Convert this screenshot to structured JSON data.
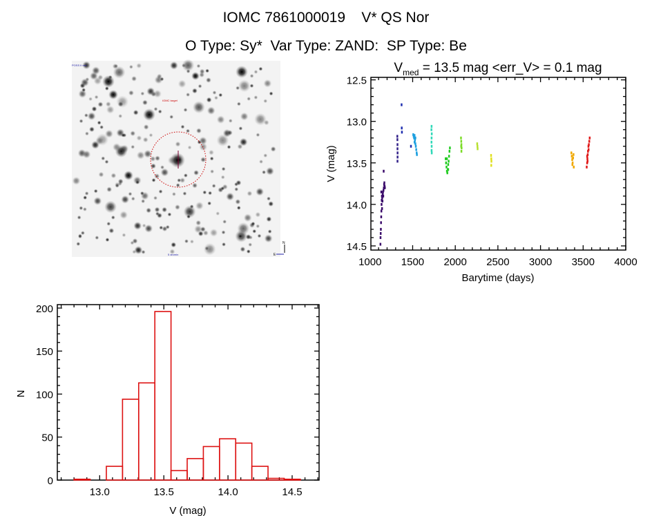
{
  "header": {
    "title": "IOMC 7861000019    V* QS Nor",
    "subtitle": "O Type: Sy*  Var Type: ZAND:  SP Type: Be"
  },
  "finder_chart": {
    "labels": [
      "POSS II red",
      "IOMC target",
      "5 arcmin",
      "N",
      "E"
    ],
    "circle_color": "#cc0000"
  },
  "chart_data": [
    {
      "type": "scatter",
      "title_main": "V",
      "title_sub": "med",
      "title_rest": " = 13.5 mag <err_V> = 0.1 mag",
      "xlabel": "Barytime (days)",
      "ylabel": "V (mag)",
      "xlim": [
        1010,
        4000
      ],
      "ylim": [
        12.47,
        14.55
      ],
      "y_inverted": true,
      "xticks": [
        "1000",
        "1500",
        "2000",
        "2500",
        "3000",
        "3500",
        "4000"
      ],
      "yticks": [
        "12.5",
        "13.0",
        "13.5",
        "14.0",
        "14.5"
      ],
      "series": [
        {
          "color": "#3a0a6a",
          "points": [
            [
              1120,
              14.48
            ],
            [
              1121,
              14.4
            ],
            [
              1123,
              14.35
            ],
            [
              1125,
              14.3
            ],
            [
              1127,
              14.22
            ],
            [
              1129,
              14.15
            ],
            [
              1131,
              14.08
            ],
            [
              1133,
              14.0
            ],
            [
              1135,
              13.95
            ],
            [
              1137,
              13.9
            ],
            [
              1139,
              14.05
            ],
            [
              1141,
              13.92
            ],
            [
              1144,
              13.96
            ],
            [
              1147,
              13.88
            ],
            [
              1150,
              13.85
            ],
            [
              1153,
              13.9
            ],
            [
              1156,
              13.83
            ],
            [
              1158,
              13.6
            ],
            [
              1160,
              13.8
            ],
            [
              1163,
              13.76
            ],
            [
              1166,
              13.74
            ],
            [
              1169,
              13.78
            ],
            [
              1172,
              13.8
            ],
            [
              1130,
              13.85
            ]
          ]
        },
        {
          "color": "#33228a",
          "points": [
            [
              1318,
              13.18
            ],
            [
              1319,
              13.22
            ],
            [
              1320,
              13.28
            ],
            [
              1320,
              13.33
            ],
            [
              1321,
              13.38
            ],
            [
              1321,
              13.43
            ],
            [
              1320,
              13.48
            ]
          ]
        },
        {
          "color": "#1f2fb0",
          "points": [
            [
              1368,
              12.8
            ],
            [
              1370,
              13.08
            ],
            [
              1372,
              13.13
            ],
            [
              1478,
              13.3
            ]
          ]
        },
        {
          "color": "#1ea0e0",
          "points": [
            [
              1505,
              13.16
            ],
            [
              1510,
              13.18
            ],
            [
              1515,
              13.2
            ],
            [
              1520,
              13.17
            ],
            [
              1525,
              13.23
            ],
            [
              1530,
              13.27
            ],
            [
              1535,
              13.3
            ],
            [
              1540,
              13.34
            ],
            [
              1545,
              13.38
            ],
            [
              1548,
              13.4
            ],
            [
              1520,
              13.25
            ],
            [
              1530,
              13.2
            ]
          ]
        },
        {
          "color": "#2fd8b8",
          "points": [
            [
              1720,
              13.06
            ],
            [
              1718,
              13.1
            ],
            [
              1722,
              13.15
            ],
            [
              1720,
              13.2
            ],
            [
              1719,
              13.25
            ],
            [
              1721,
              13.3
            ],
            [
              1720,
              13.35
            ],
            [
              1722,
              13.38
            ]
          ]
        },
        {
          "color": "#22cc22",
          "points": [
            [
              1885,
              13.45
            ],
            [
              1890,
              13.5
            ],
            [
              1895,
              13.55
            ],
            [
              1900,
              13.6
            ],
            [
              1905,
              13.62
            ],
            [
              1910,
              13.58
            ],
            [
              1915,
              13.52
            ],
            [
              1920,
              13.48
            ],
            [
              1925,
              13.42
            ],
            [
              1930,
              13.36
            ],
            [
              1935,
              13.32
            ],
            [
              1900,
              13.45
            ],
            [
              1915,
              13.58
            ]
          ]
        },
        {
          "color": "#7cdc28",
          "points": [
            [
              2065,
              13.2
            ],
            [
              2068,
              13.24
            ],
            [
              2070,
              13.28
            ],
            [
              2072,
              13.32
            ],
            [
              2070,
              13.36
            ],
            [
              2067,
              13.3
            ]
          ]
        },
        {
          "color": "#b8e030",
          "points": [
            [
              2255,
              13.27
            ],
            [
              2258,
              13.3
            ],
            [
              2260,
              13.33
            ]
          ]
        },
        {
          "color": "#e0e020",
          "points": [
            [
              2418,
              13.41
            ],
            [
              2420,
              13.45
            ],
            [
              2422,
              13.48
            ],
            [
              2420,
              13.53
            ]
          ]
        },
        {
          "color": "#f0a800",
          "points": [
            [
              3360,
              13.38
            ],
            [
              3365,
              13.42
            ],
            [
              3370,
              13.46
            ],
            [
              3375,
              13.5
            ],
            [
              3380,
              13.44
            ],
            [
              3385,
              13.4
            ],
            [
              3388,
              13.55
            ],
            [
              3372,
              13.52
            ]
          ]
        },
        {
          "color": "#e01818",
          "points": [
            [
              3540,
              13.55
            ],
            [
              3545,
              13.5
            ],
            [
              3548,
              13.45
            ],
            [
              3552,
              13.4
            ],
            [
              3555,
              13.36
            ],
            [
              3560,
              13.3
            ],
            [
              3565,
              13.28
            ],
            [
              3570,
              13.24
            ],
            [
              3575,
              13.2
            ],
            [
              3550,
              13.48
            ],
            [
              3562,
              13.34
            ],
            [
              3545,
              13.42
            ]
          ]
        }
      ]
    },
    {
      "type": "bar",
      "histogram": true,
      "xlabel": "V (mag)",
      "ylabel": "N",
      "xlim": [
        12.67,
        14.71
      ],
      "ylim": [
        0,
        204
      ],
      "xticks": [
        "13.0",
        "13.5",
        "14.0",
        "14.5"
      ],
      "yticks": [
        "0",
        "50",
        "100",
        "150",
        "200"
      ],
      "color": "#dd1111",
      "bin_edges": [
        12.8,
        12.926,
        13.052,
        13.178,
        13.304,
        13.43,
        13.556,
        13.682,
        13.808,
        13.934,
        14.06,
        14.186,
        14.312,
        14.438,
        14.564
      ],
      "values": [
        1,
        0,
        16,
        94,
        113,
        196,
        11,
        25,
        39,
        48,
        43,
        16,
        2,
        1
      ]
    }
  ]
}
